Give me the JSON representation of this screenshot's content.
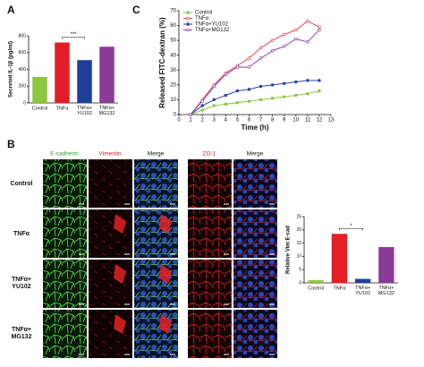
{
  "panels": {
    "a": "A",
    "b": "B",
    "c": "C"
  },
  "images": {
    "columns": [
      "E-cadherin",
      "Vimentin",
      "Merge",
      "ZO-1",
      "Merge"
    ],
    "rows": [
      "Control",
      "TNFα",
      "TNFα+ YU102",
      "TNFα+ MG132"
    ]
  },
  "chart_data": [
    {
      "type": "bar",
      "y_label": "Secreted IL-1β (pg/ml)",
      "categories": [
        "Control",
        "TNFα",
        "TNFα+ YU102",
        "TNFα+ MG132"
      ],
      "values": [
        310,
        720,
        510,
        670
      ],
      "colors": [
        "#8dc63f",
        "#e41e26",
        "#1f3f99",
        "#8b3a96"
      ],
      "ylim": [
        0,
        800
      ],
      "yticks": [
        0,
        200,
        400,
        600,
        800
      ],
      "annotation": "***"
    },
    {
      "type": "line",
      "x_label": "Time (h)",
      "y_label": "Released FITC-dextran (%)",
      "x": [
        1,
        2,
        3,
        4,
        5,
        6,
        7,
        8,
        9,
        10,
        11,
        12
      ],
      "series": [
        {
          "name": "Control",
          "color": "#8dc63f",
          "values": [
            0,
            3,
            6,
            7,
            8,
            9,
            10,
            11,
            12,
            13,
            14,
            16
          ]
        },
        {
          "name": "TNFα",
          "color": "#e8474d",
          "values": [
            0,
            10,
            20,
            28,
            33,
            38,
            45,
            50,
            54,
            57,
            63,
            59
          ]
        },
        {
          "name": "TNFα+YU102",
          "color": "#2a47a0",
          "values": [
            0,
            6,
            10,
            13,
            16,
            17,
            19,
            20,
            21,
            22,
            23,
            23
          ]
        },
        {
          "name": "TNFα+MG132",
          "color": "#8e44ad",
          "values": [
            0,
            9,
            19,
            27,
            32,
            32,
            38,
            43,
            46,
            51,
            49,
            57
          ]
        }
      ],
      "xlim": [
        0,
        13
      ],
      "xticks": [
        0,
        1,
        2,
        3,
        4,
        5,
        6,
        7,
        8,
        9,
        10,
        11,
        12,
        13
      ],
      "ylim": [
        0,
        70
      ],
      "yticks": [
        0,
        10,
        20,
        30,
        40,
        50,
        60,
        70
      ]
    },
    {
      "type": "bar",
      "y_label": "Relative Vim:E-cad",
      "categories": [
        "Control",
        "TNFα",
        "TNFα+ YU102",
        "TNFα+ MG132"
      ],
      "values": [
        1,
        18.5,
        1.5,
        13.5
      ],
      "colors": [
        "#8dc63f",
        "#e41e26",
        "#1f3f99",
        "#8b3a96"
      ],
      "ylim": [
        0,
        25
      ],
      "yticks": [
        0,
        5,
        10,
        15,
        20,
        25
      ],
      "annotation": "*"
    }
  ]
}
